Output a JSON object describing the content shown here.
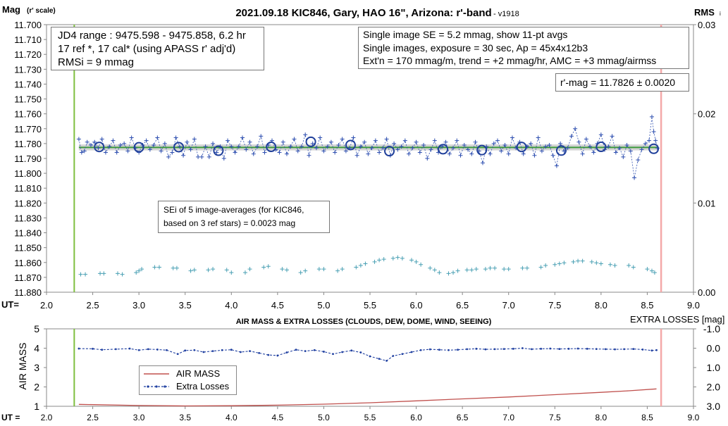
{
  "chart_data": [
    {
      "type": "scatter",
      "title": "2021.09.18 KIC846, Gary, HAO 16\", Arizona: r'-band",
      "version": "- v1918",
      "ylabel_main": "Mag",
      "ylabel_sub": "(r' scale)",
      "y2label_main": "RMS",
      "y2label_sub": "i",
      "xlabel": "UT=",
      "xlim": [
        2.0,
        9.0
      ],
      "ylim": [
        11.88,
        11.7
      ],
      "y2lim": [
        0.0,
        0.03
      ],
      "x_ticks": [
        "2.0",
        "2.5",
        "3.0",
        "3.5",
        "4.0",
        "4.5",
        "5.0",
        "5.5",
        "6.0",
        "6.5",
        "7.0",
        "7.5",
        "8.0",
        "8.5",
        "9.0"
      ],
      "y_ticks": [
        "11.700",
        "11.710",
        "11.720",
        "11.730",
        "11.740",
        "11.750",
        "11.760",
        "11.770",
        "11.780",
        "11.790",
        "11.800",
        "11.810",
        "11.820",
        "11.830",
        "11.840",
        "11.850",
        "11.860",
        "11.870",
        "11.880"
      ],
      "y2_ticks": [
        "0.03",
        "0.02",
        "0.01",
        "0.00"
      ],
      "start_line_ut": 2.3,
      "end_line_ut": 8.65,
      "fit_mag": 11.7826,
      "fit_band": 0.002,
      "averages": {
        "x": [
          2.57,
          3.0,
          3.43,
          3.86,
          4.43,
          4.86,
          5.29,
          5.71,
          6.29,
          6.71,
          7.14,
          7.57,
          8.0,
          8.57
        ],
        "y": [
          11.7823,
          11.7825,
          11.7824,
          11.7848,
          11.7822,
          11.7788,
          11.781,
          11.7851,
          11.7838,
          11.7844,
          11.7823,
          11.7847,
          11.7822,
          11.7835
        ]
      },
      "individual": {
        "x": [
          2.35,
          2.38,
          2.41,
          2.44,
          2.48,
          2.52,
          2.56,
          2.6,
          2.64,
          2.68,
          2.72,
          2.76,
          2.8,
          2.84,
          2.88,
          2.92,
          2.96,
          3.0,
          3.04,
          3.08,
          3.12,
          3.16,
          3.2,
          3.24,
          3.28,
          3.32,
          3.36,
          3.4,
          3.44,
          3.48,
          3.52,
          3.56,
          3.6,
          3.64,
          3.68,
          3.72,
          3.76,
          3.8,
          3.84,
          3.88,
          3.92,
          3.96,
          4.0,
          4.04,
          4.08,
          4.12,
          4.16,
          4.2,
          4.24,
          4.28,
          4.32,
          4.36,
          4.4,
          4.44,
          4.48,
          4.52,
          4.56,
          4.6,
          4.64,
          4.68,
          4.72,
          4.76,
          4.8,
          4.84,
          4.88,
          4.92,
          4.96,
          5.0,
          5.04,
          5.08,
          5.12,
          5.16,
          5.2,
          5.24,
          5.28,
          5.32,
          5.36,
          5.4,
          5.44,
          5.48,
          5.52,
          5.56,
          5.6,
          5.64,
          5.68,
          5.72,
          5.76,
          5.8,
          5.84,
          5.88,
          5.92,
          5.96,
          6.0,
          6.04,
          6.08,
          6.12,
          6.16,
          6.2,
          6.24,
          6.28,
          6.32,
          6.36,
          6.4,
          6.44,
          6.48,
          6.52,
          6.56,
          6.6,
          6.64,
          6.68,
          6.72,
          6.76,
          6.8,
          6.84,
          6.88,
          6.92,
          6.96,
          7.0,
          7.04,
          7.08,
          7.12,
          7.16,
          7.2,
          7.24,
          7.28,
          7.32,
          7.36,
          7.4,
          7.44,
          7.48,
          7.52,
          7.56,
          7.6,
          7.64,
          7.68,
          7.72,
          7.76,
          7.8,
          7.84,
          7.88,
          7.92,
          7.96,
          8.0,
          8.04,
          8.08,
          8.12,
          8.16,
          8.2,
          8.24,
          8.28,
          8.32,
          8.36,
          8.4,
          8.44,
          8.48,
          8.52,
          8.55,
          8.57,
          8.59,
          8.61
        ],
        "y": [
          11.777,
          11.786,
          11.785,
          11.779,
          11.781,
          11.779,
          11.783,
          11.777,
          11.786,
          11.782,
          11.778,
          11.786,
          11.781,
          11.78,
          11.785,
          11.776,
          11.783,
          11.786,
          11.781,
          11.778,
          11.784,
          11.781,
          11.776,
          11.785,
          11.78,
          11.789,
          11.786,
          11.776,
          11.782,
          11.788,
          11.779,
          11.784,
          11.777,
          11.789,
          11.789,
          11.782,
          11.789,
          11.78,
          11.786,
          11.782,
          11.79,
          11.778,
          11.782,
          11.786,
          11.782,
          11.776,
          11.784,
          11.779,
          11.787,
          11.782,
          11.775,
          11.786,
          11.781,
          11.778,
          11.784,
          11.786,
          11.779,
          11.787,
          11.782,
          11.777,
          11.785,
          11.782,
          11.774,
          11.788,
          11.78,
          11.783,
          11.776,
          11.785,
          11.782,
          11.779,
          11.786,
          11.781,
          11.777,
          11.785,
          11.783,
          11.776,
          11.788,
          11.782,
          11.779,
          11.787,
          11.783,
          11.778,
          11.786,
          11.783,
          11.777,
          11.788,
          11.78,
          11.784,
          11.782,
          11.778,
          11.787,
          11.783,
          11.779,
          11.786,
          11.781,
          11.79,
          11.784,
          11.778,
          11.786,
          11.782,
          11.779,
          11.787,
          11.783,
          11.778,
          11.788,
          11.781,
          11.784,
          11.787,
          11.779,
          11.785,
          11.793,
          11.782,
          11.787,
          11.78,
          11.778,
          11.785,
          11.781,
          11.787,
          11.776,
          11.783,
          11.779,
          11.787,
          11.782,
          11.78,
          11.788,
          11.776,
          11.785,
          11.782,
          11.781,
          11.788,
          11.795,
          11.78,
          11.785,
          11.783,
          11.775,
          11.77,
          11.779,
          11.787,
          11.777,
          11.782,
          11.786,
          11.78,
          11.774,
          11.784,
          11.782,
          11.775,
          11.786,
          11.783,
          11.789,
          11.781,
          11.785,
          11.803,
          11.791,
          11.784,
          11.78,
          11.778,
          11.762,
          11.772,
          11.778,
          11.783
        ]
      },
      "sei_text": [
        "SEi of 5 image-averages (for KIC846,",
        "based on 3 ref stars) = 0.0023 mag"
      ],
      "sei": {
        "x": [
          2.37,
          2.42,
          2.58,
          2.62,
          2.77,
          2.82,
          2.97,
          3.0,
          3.03,
          3.17,
          3.22,
          3.37,
          3.41,
          3.56,
          3.6,
          3.75,
          3.8,
          3.95,
          4.0,
          4.15,
          4.2,
          4.35,
          4.4,
          4.55,
          4.6,
          4.75,
          4.8,
          4.95,
          5.0,
          5.15,
          5.2,
          5.35,
          5.4,
          5.45,
          5.55,
          5.6,
          5.65,
          5.75,
          5.8,
          5.85,
          5.95,
          6.0,
          6.05,
          6.15,
          6.2,
          6.25,
          6.35,
          6.4,
          6.45,
          6.55,
          6.6,
          6.65,
          6.75,
          6.8,
          6.85,
          6.95,
          7.0,
          7.15,
          7.2,
          7.35,
          7.4,
          7.5,
          7.55,
          7.6,
          7.7,
          7.75,
          7.8,
          7.9,
          7.95,
          8.0,
          8.1,
          8.15,
          8.3,
          8.35,
          8.5,
          8.55,
          8.58
        ],
        "y": [
          0.002,
          0.002,
          0.0021,
          0.0021,
          0.0021,
          0.002,
          0.0022,
          0.0024,
          0.0026,
          0.0028,
          0.0028,
          0.0027,
          0.0027,
          0.0024,
          0.0025,
          0.0025,
          0.0026,
          0.0025,
          0.0022,
          0.0022,
          0.0026,
          0.0028,
          0.0029,
          0.0026,
          0.0025,
          0.0022,
          0.0024,
          0.0026,
          0.0026,
          0.0024,
          0.0026,
          0.0028,
          0.003,
          0.0032,
          0.0034,
          0.0036,
          0.0037,
          0.0038,
          0.0039,
          0.0038,
          0.0036,
          0.0034,
          0.0031,
          0.0027,
          0.0025,
          0.0022,
          0.0021,
          0.0022,
          0.0024,
          0.0025,
          0.0025,
          0.0026,
          0.0026,
          0.0027,
          0.0027,
          0.0026,
          0.0026,
          0.0027,
          0.0027,
          0.0028,
          0.003,
          0.0031,
          0.0032,
          0.0033,
          0.0034,
          0.0035,
          0.0035,
          0.0034,
          0.0033,
          0.0032,
          0.0031,
          0.003,
          0.003,
          0.0028,
          0.0026,
          0.0024,
          0.0022
        ]
      },
      "annotations": {
        "box1": [
          "JD4 range : 9475.598 - 9475.858,  6.2  hr",
          "17 ref *, 17 cal* (using APASS r' adj'd)",
          "RMSi = 9 mmag"
        ],
        "box2": [
          "Single image SE = 5.2 mmag, show  11-pt avgs",
          "Single images, exposure = 30 sec, Ap = 45x4x12b3",
          "Ext'n = 170 mmag/m, trend =  +2 mmag/hr, AMC = +3 mmag/airmss"
        ],
        "box3": "r'-mag = 11.7826 ± 0.0020"
      }
    },
    {
      "type": "line",
      "title": "AIR MASS & EXTRA LOSSES (CLOUDS, DEW, DOME, WIND, SEEING)",
      "ylabel": "AIR MASS",
      "y2label": "EXTRA LOSSES [mag]",
      "xlabel": "UT =",
      "xlim": [
        2.0,
        9.0
      ],
      "ylim": [
        1,
        5
      ],
      "y2lim": [
        -1.0,
        3.0
      ],
      "x_ticks": [
        "2.0",
        "2.5",
        "3.0",
        "3.5",
        "4.0",
        "4.5",
        "5.0",
        "5.5",
        "6.0",
        "6.5",
        "7.0",
        "7.5",
        "8.0",
        "8.5",
        "9.0"
      ],
      "y_ticks": [
        "5",
        "4",
        "3",
        "2",
        "1"
      ],
      "y2_ticks": [
        "-1.0",
        "0.0",
        "1.0",
        "2.0",
        "3.0"
      ],
      "series": [
        {
          "name": "AIR MASS",
          "color": "#c0504d",
          "x": [
            2.35,
            3.0,
            3.5,
            4.0,
            4.5,
            5.0,
            5.5,
            6.0,
            6.5,
            7.0,
            7.5,
            8.0,
            8.3,
            8.6
          ],
          "y": [
            1.1,
            1.04,
            1.02,
            1.03,
            1.06,
            1.11,
            1.18,
            1.28,
            1.38,
            1.48,
            1.6,
            1.72,
            1.8,
            1.9
          ]
        },
        {
          "name": "Extra Losses",
          "color": "#1f3fa0",
          "x": [
            2.35,
            2.5,
            2.6,
            2.75,
            2.9,
            3.0,
            3.1,
            3.2,
            3.3,
            3.42,
            3.5,
            3.6,
            3.7,
            3.8,
            3.9,
            4.0,
            4.1,
            4.2,
            4.3,
            4.4,
            4.5,
            4.6,
            4.7,
            4.8,
            4.9,
            5.0,
            5.1,
            5.2,
            5.3,
            5.4,
            5.5,
            5.6,
            5.68,
            5.75,
            5.85,
            5.95,
            6.05,
            6.15,
            6.25,
            6.35,
            6.45,
            6.55,
            6.65,
            6.75,
            6.85,
            6.95,
            7.05,
            7.15,
            7.25,
            7.35,
            7.45,
            7.55,
            7.65,
            7.75,
            7.85,
            7.95,
            8.05,
            8.15,
            8.25,
            8.35,
            8.45,
            8.55,
            8.6
          ],
          "y": [
            0.02,
            0.03,
            0.08,
            0.05,
            0.02,
            0.1,
            0.05,
            0.07,
            0.1,
            0.3,
            0.12,
            0.1,
            0.2,
            0.15,
            0.1,
            0.08,
            0.2,
            0.15,
            0.25,
            0.35,
            0.38,
            0.22,
            0.08,
            0.15,
            0.1,
            0.18,
            0.3,
            0.2,
            0.12,
            0.22,
            0.42,
            0.55,
            0.65,
            0.4,
            0.3,
            0.2,
            0.1,
            0.06,
            0.08,
            0.1,
            0.08,
            0.05,
            0.03,
            0.06,
            0.05,
            0.04,
            0.03,
            0.0,
            0.05,
            0.03,
            0.02,
            0.04,
            0.03,
            0.02,
            0.03,
            0.04,
            0.05,
            0.06,
            0.05,
            0.04,
            0.07,
            0.12,
            0.1
          ]
        }
      ]
    }
  ]
}
